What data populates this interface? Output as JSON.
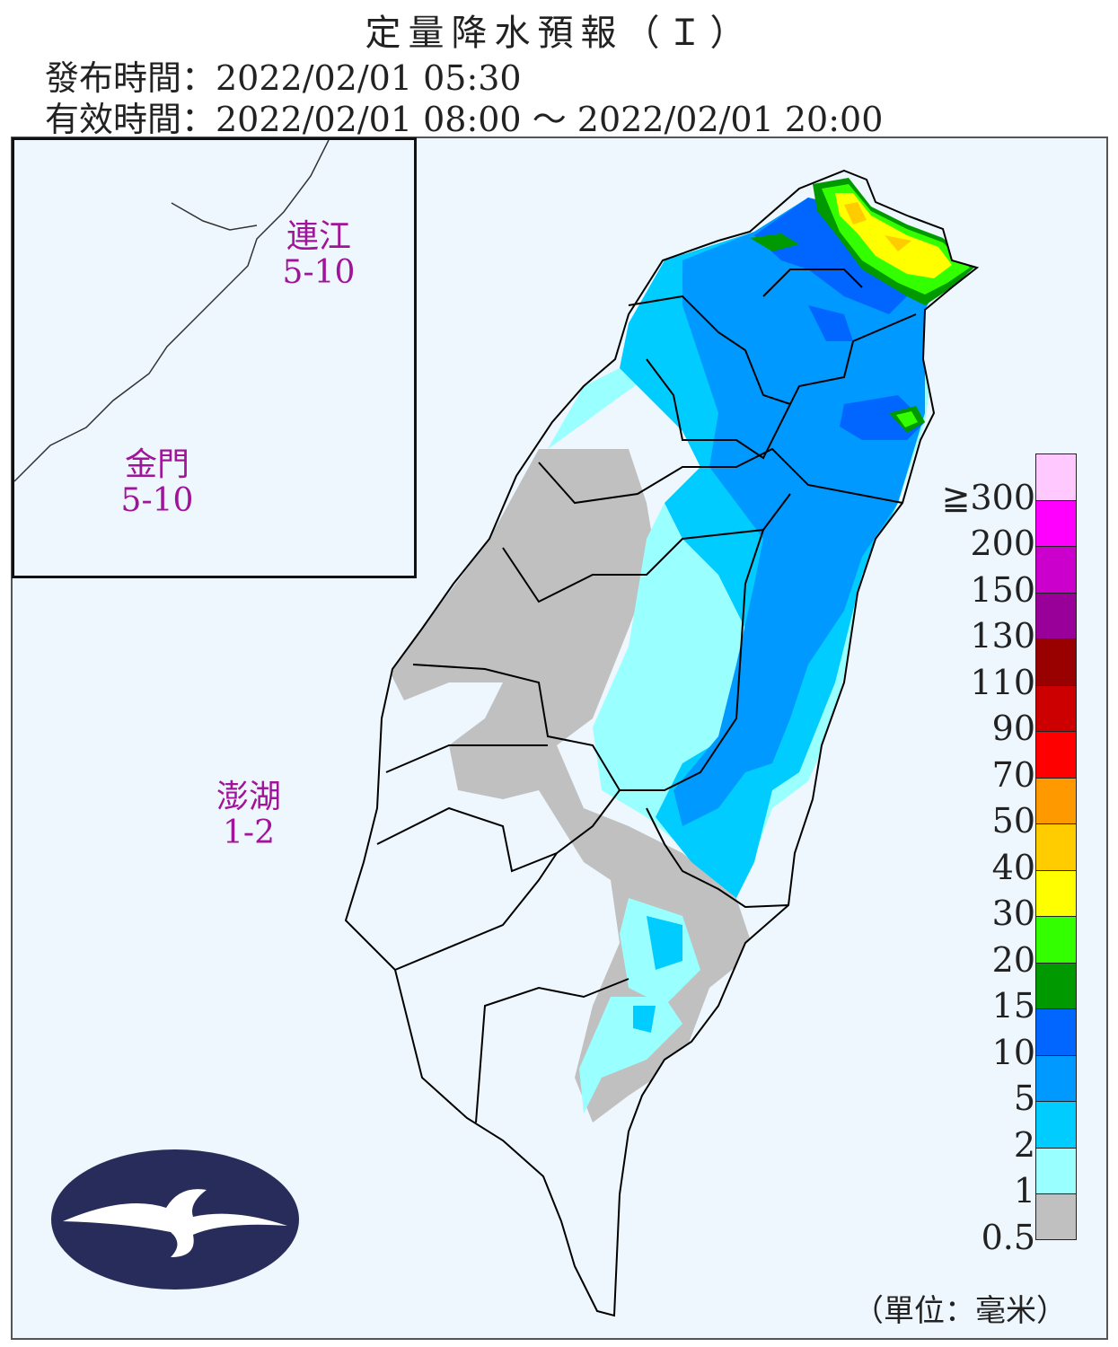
{
  "header": {
    "title": "定量降水預報（Ｉ）",
    "issue_time": "發布時間：2022/02/01 05:30",
    "valid_time": "有效時間：2022/02/01 08:00 ～ 2022/02/01 20:00"
  },
  "regions": [
    {
      "name": "連江",
      "value": "5-10"
    },
    {
      "name": "金門",
      "value": "5-10"
    },
    {
      "name": "澎湖",
      "value": "1-2"
    }
  ],
  "legend": {
    "labels": [
      "≧300",
      "200",
      "150",
      "130",
      "110",
      "90",
      "70",
      "50",
      "40",
      "30",
      "20",
      "15",
      "10",
      "5",
      "2",
      "1",
      "0.5"
    ],
    "colors": [
      "#ffc8ff",
      "#ff00ff",
      "#cc00cc",
      "#990099",
      "#990000",
      "#cc0000",
      "#ff0000",
      "#ff9900",
      "#ffcc00",
      "#ffff00",
      "#33ff00",
      "#009900",
      "#0066ff",
      "#0099ff",
      "#00ccff",
      "#99ffff",
      "#c0c0c0"
    ],
    "unit": "（單位：毫米）"
  },
  "logo": "central-weather-bureau-logo"
}
